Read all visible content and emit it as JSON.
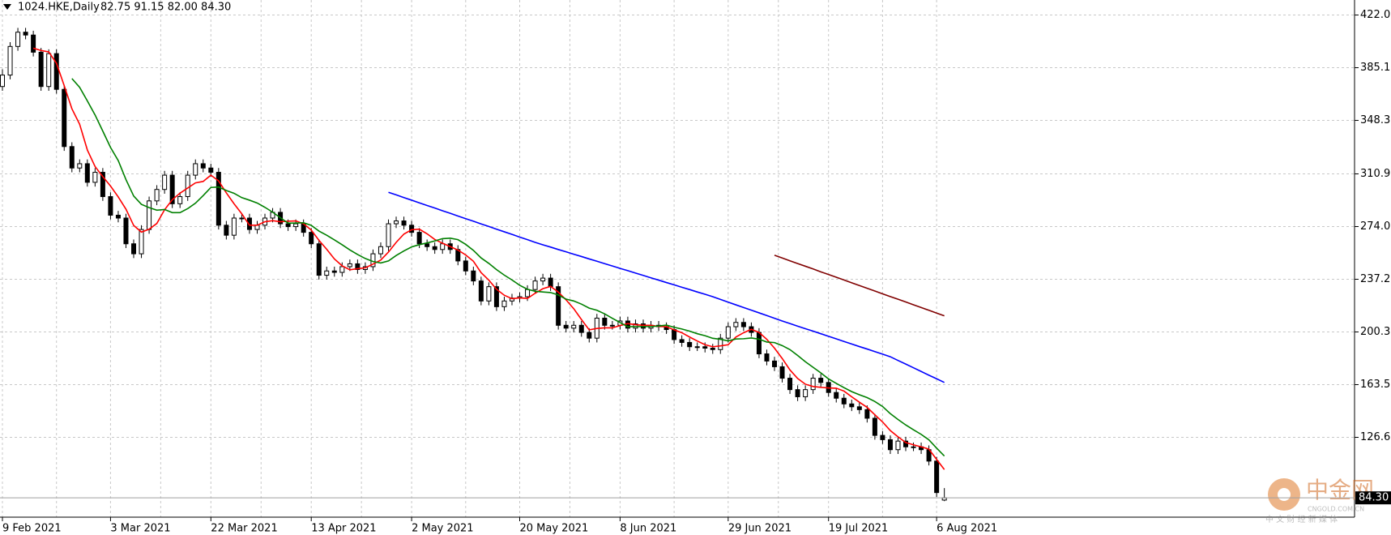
{
  "chart_data": {
    "type": "candlestick",
    "header": {
      "symbol": "1024.HKE,Daily",
      "ohlc_text": "82.75 91.15 82.00 84.30"
    },
    "categories": [
      "9 Feb 2021",
      null,
      null,
      null,
      null,
      null,
      null,
      null,
      null,
      null,
      null,
      null,
      null,
      null,
      "3 Mar 2021",
      null,
      null,
      null,
      null,
      null,
      null,
      null,
      null,
      null,
      null,
      null,
      null,
      "22 Mar 2021",
      null,
      null,
      null,
      null,
      null,
      null,
      null,
      null,
      null,
      null,
      null,
      null,
      "13 Apr 2021",
      null,
      null,
      null,
      null,
      null,
      null,
      null,
      null,
      null,
      null,
      null,
      null,
      "2 May 2021",
      null,
      null,
      null,
      null,
      null,
      null,
      null,
      null,
      null,
      null,
      null,
      null,
      null,
      "20 May 2021",
      null,
      null,
      null,
      null,
      null,
      null,
      null,
      null,
      null,
      null,
      null,
      null,
      "8 Jun 2021",
      null,
      null,
      null,
      null,
      null,
      null,
      null,
      null,
      null,
      null,
      null,
      null,
      null,
      "29 Jun 2021",
      null,
      null,
      null,
      null,
      null,
      null,
      null,
      null,
      null,
      null,
      null,
      null,
      "19 Jul 2021",
      null,
      null,
      null,
      null,
      null,
      null,
      null,
      null,
      null,
      null,
      null,
      null,
      null,
      "6 Aug 2021",
      null
    ],
    "ohlc": [
      [
        372,
        384,
        369,
        380
      ],
      [
        380,
        403,
        377,
        400
      ],
      [
        400,
        413,
        397,
        410
      ],
      [
        410,
        413,
        405,
        408
      ],
      [
        408,
        411,
        393,
        396
      ],
      [
        396,
        399,
        369,
        372
      ],
      [
        372,
        398,
        369,
        395
      ],
      [
        395,
        398,
        367,
        370
      ],
      [
        370,
        373,
        327,
        330
      ],
      [
        330,
        333,
        312,
        315
      ],
      [
        315,
        321,
        312,
        318
      ],
      [
        318,
        321,
        302,
        305
      ],
      [
        305,
        315,
        302,
        312
      ],
      [
        312,
        315,
        292,
        295
      ],
      [
        295,
        298,
        279,
        282
      ],
      [
        282,
        285,
        277,
        280
      ],
      [
        280,
        283,
        259,
        262
      ],
      [
        262,
        265,
        252,
        255
      ],
      [
        255,
        275,
        252,
        272
      ],
      [
        272,
        295,
        269,
        292
      ],
      [
        292,
        303,
        289,
        300
      ],
      [
        300,
        313,
        297,
        310
      ],
      [
        310,
        313,
        287,
        290
      ],
      [
        290,
        298,
        287,
        295
      ],
      [
        295,
        313,
        292,
        310
      ],
      [
        310,
        321,
        307,
        318
      ],
      [
        318,
        321,
        312,
        315
      ],
      [
        315,
        318,
        309,
        312
      ],
      [
        312,
        315,
        272,
        275
      ],
      [
        275,
        278,
        265,
        268
      ],
      [
        268,
        283,
        265,
        280
      ],
      [
        280,
        283,
        277,
        280
      ],
      [
        280,
        283,
        269,
        272
      ],
      [
        272,
        278,
        269,
        275
      ],
      [
        275,
        283,
        272,
        280
      ],
      [
        280,
        287,
        277,
        284
      ],
      [
        284,
        287,
        273,
        276
      ],
      [
        276,
        279,
        271,
        274
      ],
      [
        274,
        279,
        271,
        276
      ],
      [
        276,
        279,
        267,
        270
      ],
      [
        270,
        273,
        259,
        262
      ],
      [
        262,
        265,
        237,
        240
      ],
      [
        240,
        246,
        237,
        243
      ],
      [
        243,
        246,
        239,
        242
      ],
      [
        242,
        249,
        239,
        246
      ],
      [
        246,
        251,
        243,
        248
      ],
      [
        248,
        251,
        241,
        244
      ],
      [
        244,
        249,
        241,
        246
      ],
      [
        246,
        258,
        243,
        255
      ],
      [
        255,
        263,
        252,
        260
      ],
      [
        260,
        279,
        257,
        276
      ],
      [
        276,
        281,
        273,
        278
      ],
      [
        278,
        281,
        272,
        275
      ],
      [
        275,
        278,
        267,
        270
      ],
      [
        270,
        273,
        259,
        262
      ],
      [
        262,
        265,
        257,
        260
      ],
      [
        260,
        263,
        255,
        258
      ],
      [
        258,
        265,
        255,
        262
      ],
      [
        262,
        265,
        255,
        258
      ],
      [
        258,
        261,
        247,
        250
      ],
      [
        250,
        253,
        240,
        243
      ],
      [
        243,
        246,
        233,
        236
      ],
      [
        236,
        239,
        219,
        222
      ],
      [
        222,
        235,
        219,
        232
      ],
      [
        232,
        235,
        215,
        218
      ],
      [
        218,
        225,
        215,
        222
      ],
      [
        222,
        227,
        219,
        224
      ],
      [
        224,
        228,
        221,
        225
      ],
      [
        225,
        233,
        222,
        230
      ],
      [
        230,
        239,
        227,
        236
      ],
      [
        236,
        241,
        233,
        238
      ],
      [
        238,
        241,
        229,
        232
      ],
      [
        232,
        235,
        202,
        205
      ],
      [
        205,
        208,
        200,
        203
      ],
      [
        203,
        208,
        200,
        205
      ],
      [
        205,
        208,
        197,
        200
      ],
      [
        200,
        203,
        193,
        196
      ],
      [
        196,
        213,
        193,
        210
      ],
      [
        210,
        213,
        202,
        205
      ],
      [
        205,
        208,
        202,
        205
      ],
      [
        205,
        211,
        202,
        208
      ],
      [
        208,
        211,
        200,
        203
      ],
      [
        203,
        209,
        200,
        206
      ],
      [
        206,
        209,
        200,
        203
      ],
      [
        203,
        208,
        200,
        205
      ],
      [
        205,
        208,
        201,
        204
      ],
      [
        204,
        207,
        199,
        202
      ],
      [
        202,
        205,
        192,
        195
      ],
      [
        195,
        198,
        190,
        193
      ],
      [
        193,
        196,
        187,
        190
      ],
      [
        190,
        193,
        187,
        190
      ],
      [
        190,
        193,
        186,
        189
      ],
      [
        189,
        192,
        185,
        188
      ],
      [
        188,
        199,
        185,
        196
      ],
      [
        196,
        207,
        193,
        204
      ],
      [
        204,
        210,
        201,
        207
      ],
      [
        207,
        210,
        201,
        204
      ],
      [
        204,
        207,
        197,
        200
      ],
      [
        200,
        203,
        182,
        185
      ],
      [
        185,
        188,
        177,
        180
      ],
      [
        180,
        183,
        173,
        176
      ],
      [
        176,
        179,
        165,
        168
      ],
      [
        168,
        171,
        157,
        160
      ],
      [
        160,
        163,
        152,
        155
      ],
      [
        155,
        163,
        152,
        160
      ],
      [
        160,
        171,
        157,
        168
      ],
      [
        168,
        171,
        162,
        165
      ],
      [
        165,
        168,
        155,
        158
      ],
      [
        158,
        161,
        151,
        154
      ],
      [
        154,
        157,
        147,
        150
      ],
      [
        150,
        153,
        145,
        148
      ],
      [
        148,
        151,
        143,
        146
      ],
      [
        146,
        149,
        137,
        140
      ],
      [
        140,
        143,
        125,
        128
      ],
      [
        128,
        131,
        122,
        125
      ],
      [
        125,
        128,
        115,
        118
      ],
      [
        118,
        127,
        115,
        124
      ],
      [
        124,
        127,
        117,
        120
      ],
      [
        120,
        123,
        117,
        120
      ],
      [
        120,
        123,
        115,
        118
      ],
      [
        118,
        121,
        107,
        110
      ],
      [
        110,
        113,
        85,
        88
      ],
      [
        82.75,
        91.15,
        82,
        84.3
      ]
    ],
    "up_color": "#ffffff",
    "down_color": "#000000",
    "outline_color": "#000000",
    "lines": [
      {
        "color": "#ff0000",
        "values": [
          null,
          null,
          null,
          null,
          398.8,
          397.2,
          396.2,
          388.2,
          372.6,
          356.4,
          345.6,
          327.6,
          316,
          309,
          302.4,
          294.8,
          286.2,
          274.8,
          270.2,
          272.2,
          276.2,
          285.8,
          292.8,
          297.4,
          301,
          304.6,
          305.6,
          310,
          306,
          297.6,
          290,
          283,
          275,
          275,
          277.4,
          278.2,
          277.4,
          277.8,
          278,
          276,
          271.6,
          264.4,
          258.2,
          251.4,
          246.6,
          243.8,
          244.6,
          245.2,
          247.8,
          250.6,
          256.2,
          263,
          268.8,
          271.8,
          272.2,
          269,
          265,
          262.4,
          260,
          257.6,
          254.2,
          249.8,
          241.8,
          236.6,
          230.2,
          226,
          223.6,
          224.2,
          223.8,
          227.4,
          230.6,
          232.2,
          228.2,
          222.8,
          216.6,
          209,
          201.8,
          202.8,
          203.2,
          203.2,
          204.8,
          206.2,
          205.4,
          205,
          205,
          204.2,
          204,
          201.8,
          199.8,
          196.8,
          194,
          191.4,
          190,
          190.6,
          191.4,
          196.8,
          199.8,
          202.2,
          200,
          195.2,
          189,
          181.8,
          173.8,
          167.8,
          163.8,
          162.2,
          161.6,
          161.2,
          161,
          159,
          155,
          151.2,
          147.6,
          142.4,
          137.4,
          131.4,
          127,
          123,
          121.4,
          120,
          118.4,
          111.2,
          104.1
        ]
      },
      {
        "color": "#008000",
        "values": [
          null,
          null,
          null,
          null,
          null,
          null,
          null,
          null,
          null,
          377.6,
          371.4,
          361.9,
          352.1,
          340.8,
          329.4,
          320.2,
          306.9,
          295.4,
          289.6,
          287.3,
          285.5,
          286,
          283.8,
          283.8,
          286.6,
          290.4,
          295.7,
          301.4,
          301.7,
          299.3,
          297.3,
          294.3,
          292.5,
          290.5,
          287.5,
          284.1,
          280.2,
          276.4,
          276.5,
          276.7,
          274.9,
          270.9,
          268,
          264.7,
          261.3,
          257.7,
          254.5,
          251.7,
          249.6,
          248.6,
          250,
          253.8,
          257,
          259.8,
          261.4,
          262.6,
          264,
          265.6,
          265.9,
          264.9,
          261.6,
          257.4,
          252.1,
          248.3,
          243.9,
          240.1,
          236.7,
          233,
          230.2,
          228.8,
          228.3,
          227.9,
          226.2,
          223.3,
          222,
          219.8,
          217,
          215.5,
          213,
          209.9,
          206.9,
          204,
          204.1,
          204.1,
          204.1,
          204.5,
          205.1,
          203.6,
          202.4,
          200.9,
          199.1,
          197.7,
          195.9,
          195.2,
          194.1,
          195.4,
          195.6,
          196.1,
          195.3,
          193.3,
          192.9,
          190.8,
          188,
          183.9,
          179.5,
          175.6,
          171.7,
          167.5,
          164.4,
          161.4,
          158.6,
          156.4,
          154.4,
          151.7,
          148.2,
          143.2,
          139.1,
          135.3,
          131.9,
          128.7,
          124.9,
          119.1,
          113.6
        ]
      },
      {
        "color": "#0000ff",
        "values": [
          null,
          null,
          null,
          null,
          null,
          null,
          null,
          null,
          null,
          null,
          null,
          null,
          null,
          null,
          null,
          null,
          null,
          null,
          null,
          null,
          null,
          null,
          null,
          null,
          null,
          null,
          null,
          null,
          null,
          null,
          null,
          null,
          null,
          null,
          null,
          null,
          null,
          null,
          null,
          null,
          null,
          null,
          null,
          null,
          null,
          null,
          null,
          null,
          null,
          null,
          298,
          296.2,
          294.3,
          292.5,
          290.6,
          288.8,
          287,
          285.1,
          283.3,
          281.4,
          279.6,
          277.8,
          275.9,
          274.1,
          272.2,
          270.4,
          268.6,
          266.7,
          264.9,
          263,
          261.3,
          259.7,
          258,
          256.4,
          254.7,
          253.1,
          251.4,
          249.8,
          248.1,
          246.5,
          244.8,
          243.2,
          241.5,
          239.9,
          238.2,
          236.6,
          234.9,
          233.3,
          231.6,
          230,
          228.3,
          226.7,
          225,
          223.1,
          221.2,
          219.3,
          217.4,
          215.6,
          213.7,
          211.8,
          209.9,
          208,
          206.2,
          204.4,
          202.6,
          200.9,
          199.1,
          197.3,
          195.5,
          193.7,
          191.9,
          190.1,
          188.4,
          186.6,
          184.8,
          183,
          180.4,
          177.9,
          175.3,
          172.7,
          170.1,
          167.6,
          165
        ]
      },
      {
        "color": "#800000",
        "values": [
          null,
          null,
          null,
          null,
          null,
          null,
          null,
          null,
          null,
          null,
          null,
          null,
          null,
          null,
          null,
          null,
          null,
          null,
          null,
          null,
          null,
          null,
          null,
          null,
          null,
          null,
          null,
          null,
          null,
          null,
          null,
          null,
          null,
          null,
          null,
          null,
          null,
          null,
          null,
          null,
          null,
          null,
          null,
          null,
          null,
          null,
          null,
          null,
          null,
          null,
          null,
          null,
          null,
          null,
          null,
          null,
          null,
          null,
          null,
          null,
          null,
          null,
          null,
          null,
          null,
          null,
          null,
          null,
          null,
          null,
          null,
          null,
          null,
          null,
          null,
          null,
          null,
          null,
          null,
          null,
          null,
          null,
          null,
          null,
          null,
          null,
          null,
          null,
          null,
          null,
          null,
          null,
          null,
          null,
          null,
          null,
          null,
          null,
          null,
          null,
          254,
          252.1,
          250.1,
          248.2,
          246.3,
          244.4,
          242.4,
          240.5,
          238.6,
          236.7,
          234.7,
          232.8,
          230.9,
          229,
          227,
          225.1,
          223.2,
          221.3,
          219.3,
          217.4,
          215.5,
          213.5,
          211.6
        ]
      }
    ],
    "ylim": [
      70.8,
      432.5
    ],
    "yticks": [
      {
        "value": 422,
        "label": "422.00"
      },
      {
        "value": 385.15,
        "label": "385.15"
      },
      {
        "value": 348.3,
        "label": "348.30"
      },
      {
        "value": 310.9,
        "label": "310.90"
      },
      {
        "value": 274.05,
        "label": "274.05"
      },
      {
        "value": 237.2,
        "label": "237.20"
      },
      {
        "value": 200.35,
        "label": "200.35"
      },
      {
        "value": 163.5,
        "label": "163.50"
      },
      {
        "value": 126.65,
        "label": "126.65"
      }
    ],
    "last_price": {
      "value": 84.3,
      "label": "84.30"
    },
    "grid": true,
    "watermark": {
      "title": "中金网",
      "url": "CNGOLD.COM.CN",
      "tagline": "中 文 财 经 新 媒 体"
    }
  }
}
